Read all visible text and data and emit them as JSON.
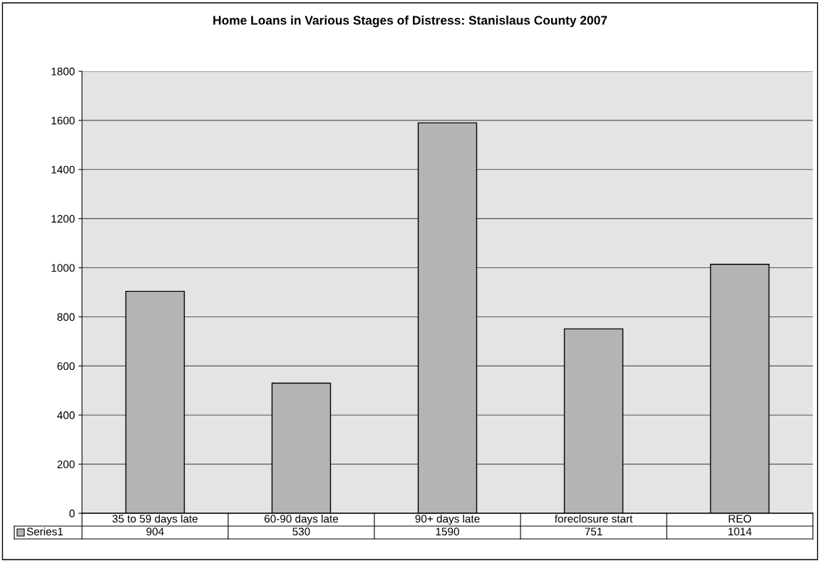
{
  "chart_data": {
    "type": "bar",
    "title": "Home Loans in Various Stages of Distress: Stanislaus County 2007",
    "categories": [
      "35 to 59 days late",
      "60-90 days late",
      "90+ days late",
      "foreclosure start",
      "REO"
    ],
    "series": [
      {
        "name": "Series1",
        "color": "#b4b4b4",
        "values": [
          904,
          530,
          1590,
          751,
          1014
        ]
      }
    ],
    "ylim": [
      0,
      1800
    ],
    "yticks": [
      0,
      200,
      400,
      600,
      800,
      1000,
      1200,
      1400,
      1600,
      1800
    ],
    "grid": "y",
    "data_labels": true,
    "legend": "bottom"
  }
}
